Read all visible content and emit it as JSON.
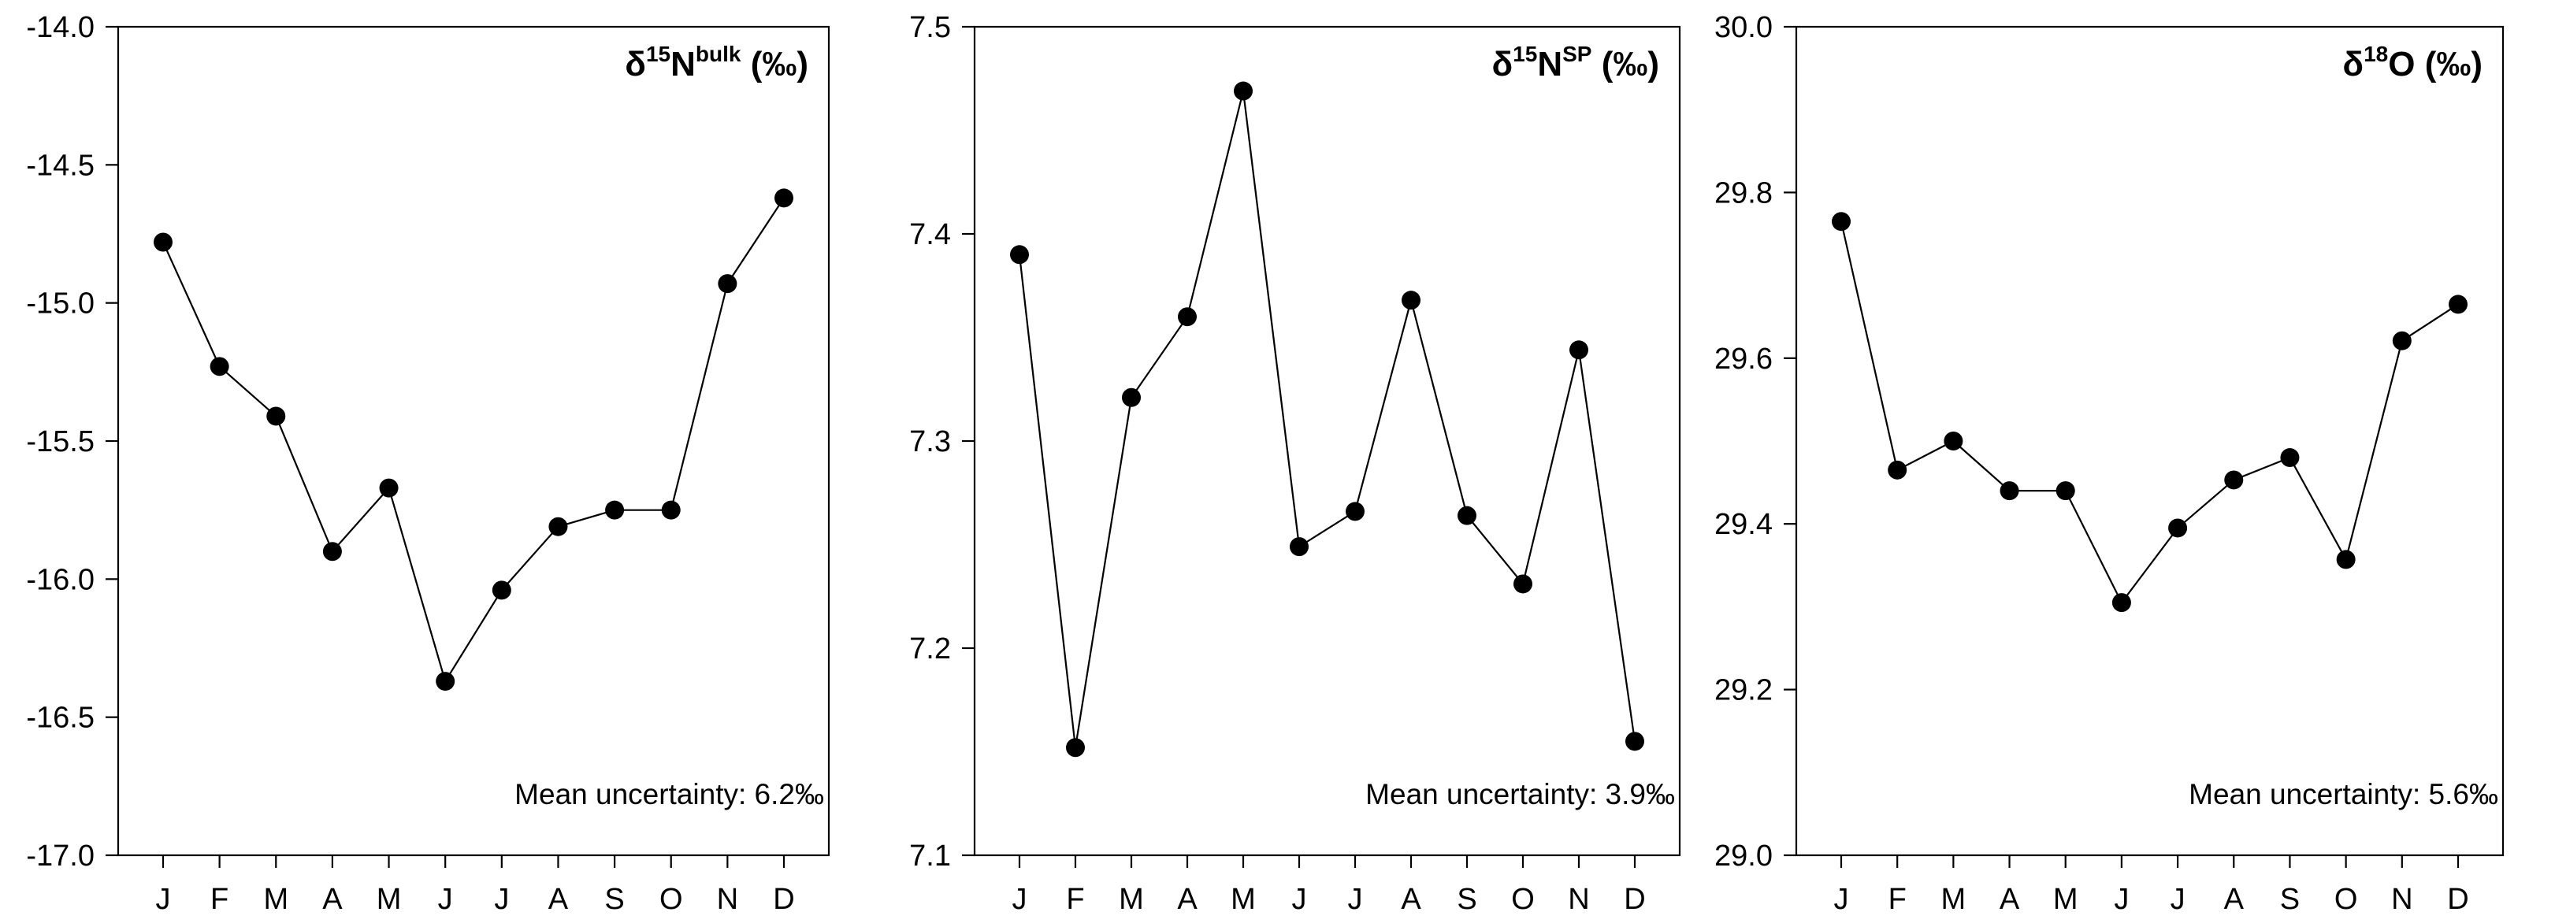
{
  "chart_data": [
    {
      "type": "line",
      "title": {
        "prefix": "δ",
        "sup1": "15",
        "base": "N",
        "sup2": "bulk",
        "suffix": " (‰)"
      },
      "categories": [
        "J",
        "F",
        "M",
        "A",
        "M",
        "J",
        "J",
        "A",
        "S",
        "O",
        "N",
        "D"
      ],
      "series": [
        {
          "values": [
            -14.78,
            -15.23,
            -15.41,
            -15.9,
            -15.67,
            -16.37,
            -16.04,
            -15.81,
            -15.75,
            -15.75,
            -14.93,
            -14.62
          ]
        }
      ],
      "ylim": [
        -17.0,
        -14.0
      ],
      "yticks": [
        "-17.0",
        "-16.5",
        "-16.0",
        "-15.5",
        "-15.0",
        "-14.5",
        "-14.0"
      ],
      "ytick_values": [
        -17.0,
        -16.5,
        -16.0,
        -15.5,
        -15.0,
        -14.5,
        -14.0
      ],
      "annotation": "Mean uncertainty: 6.2‰",
      "grid": false
    },
    {
      "type": "line",
      "title": {
        "prefix": "δ",
        "sup1": "15",
        "base": "N",
        "sup2": "SP",
        "suffix": " (‰)"
      },
      "categories": [
        "J",
        "F",
        "M",
        "A",
        "M",
        "J",
        "J",
        "A",
        "S",
        "O",
        "N",
        "D"
      ],
      "series": [
        {
          "values": [
            7.39,
            7.152,
            7.321,
            7.36,
            7.469,
            7.249,
            7.266,
            7.368,
            7.264,
            7.231,
            7.344,
            7.155
          ]
        }
      ],
      "ylim": [
        7.1,
        7.5
      ],
      "yticks": [
        "7.1",
        "7.2",
        "7.3",
        "7.4",
        "7.5"
      ],
      "ytick_values": [
        7.1,
        7.2,
        7.3,
        7.4,
        7.5
      ],
      "annotation": "Mean uncertainty: 3.9‰",
      "grid": false
    },
    {
      "type": "line",
      "title": {
        "prefix": "δ",
        "sup1": "18",
        "base": "O",
        "sup2": "",
        "suffix": " (‰)"
      },
      "categories": [
        "J",
        "F",
        "M",
        "A",
        "M",
        "J",
        "J",
        "A",
        "S",
        "O",
        "N",
        "D"
      ],
      "series": [
        {
          "values": [
            29.765,
            29.465,
            29.5,
            29.44,
            29.44,
            29.305,
            29.395,
            29.453,
            29.48,
            29.357,
            29.621,
            29.665
          ]
        }
      ],
      "ylim": [
        29.0,
        30.0
      ],
      "yticks": [
        "29.0",
        "29.2",
        "29.4",
        "29.6",
        "29.8",
        "30.0"
      ],
      "ytick_values": [
        29.0,
        29.2,
        29.4,
        29.6,
        29.8,
        30.0
      ],
      "annotation": "Mean uncertainty: 5.6‰",
      "grid": false
    }
  ]
}
